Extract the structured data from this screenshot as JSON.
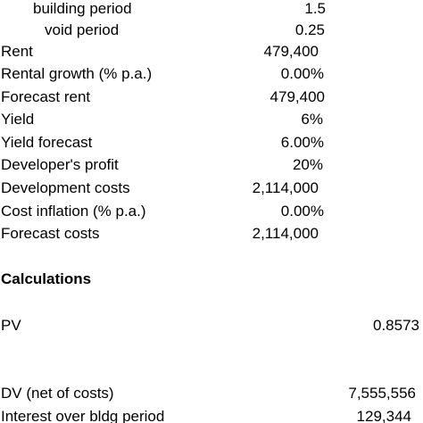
{
  "inputs": [
    {
      "label": "building period",
      "value": "1.5"
    },
    {
      "label": "void period",
      "value": "0.25"
    },
    {
      "label": "Rent",
      "value": "479,400"
    },
    {
      "label": "Rental growth (% p.a.)",
      "value": "0.00%"
    },
    {
      "label": "Forecast rent",
      "value": "479,400"
    },
    {
      "label": "Yield",
      "value": "6%"
    },
    {
      "label": "Yield forecast",
      "value": "6.00%"
    },
    {
      "label": "Developer's profit",
      "value": "20%"
    },
    {
      "label": "Development costs",
      "value": "2,114,000"
    },
    {
      "label": "Cost inflation (% p.a.)",
      "value": "0.00%"
    },
    {
      "label": "Forecast costs",
      "value": "2,114,000"
    }
  ],
  "calculations": {
    "heading": "Calculations",
    "rows": [
      {
        "label": "PV",
        "value": "0.8573"
      },
      {
        "label": "DV (net of costs)",
        "value": "7,555,556"
      },
      {
        "label": "Interest over bldg period",
        "value": "129,344"
      }
    ]
  }
}
